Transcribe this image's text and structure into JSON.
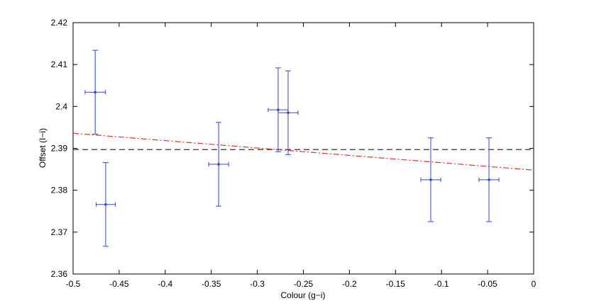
{
  "chart_data": {
    "type": "scatter",
    "xlabel": "Colour (g−i)",
    "ylabel": "Offset (I−i)",
    "xlim": [
      -0.5,
      0
    ],
    "ylim": [
      2.36,
      2.42
    ],
    "xticks": [
      -0.5,
      -0.45,
      -0.4,
      -0.35,
      -0.3,
      -0.25,
      -0.2,
      -0.15,
      -0.1,
      -0.05,
      0
    ],
    "yticks": [
      2.36,
      2.37,
      2.38,
      2.39,
      2.4,
      2.41,
      2.42
    ],
    "grid": false,
    "series": [
      {
        "color": "#3344dd",
        "x": [
          -0.476,
          -0.4646,
          -0.342,
          -0.2774,
          -0.2666,
          -0.1117,
          -0.0485
        ],
        "values": [
          2.4034,
          2.3766,
          2.3862,
          2.3992,
          2.3985,
          2.3825,
          2.3825
        ],
        "xerr": [
          0.011,
          0.0104,
          0.0108,
          0.0108,
          0.0108,
          0.0108,
          0.0108
        ],
        "yerr": [
          0.01,
          0.01,
          0.01,
          0.01,
          0.01,
          0.01,
          0.01
        ]
      }
    ],
    "hline": {
      "value": 2.3897,
      "color": "#333333"
    },
    "fit": {
      "x": [
        -0.5,
        0
      ],
      "y": [
        2.3936,
        2.3848
      ],
      "color": "#e8302a"
    }
  }
}
